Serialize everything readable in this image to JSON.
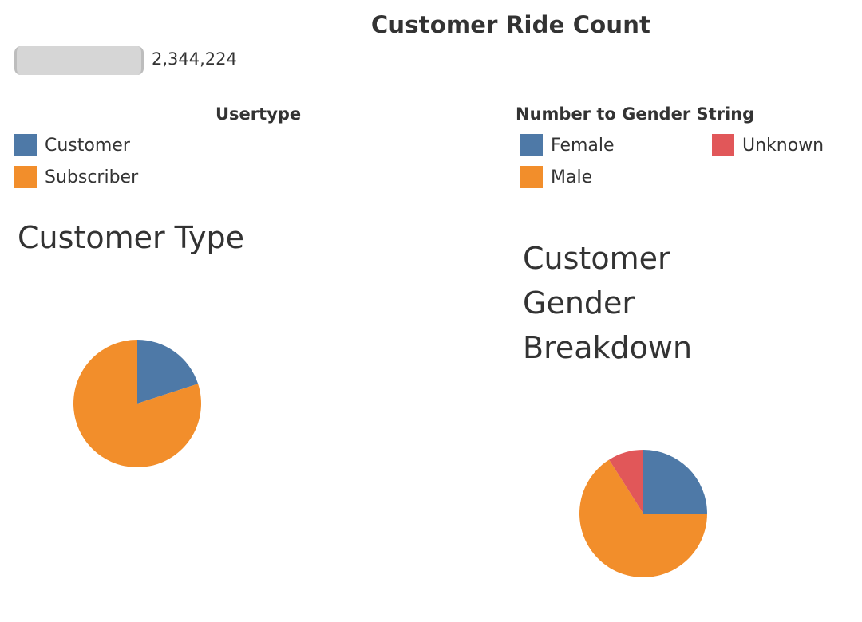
{
  "ride_count": {
    "title": "Customer Ride Count",
    "value": "2,344,224",
    "bar_fill_fraction": 1.0
  },
  "usertype_legend": {
    "title": "Usertype",
    "items": [
      {
        "label": "Customer",
        "color": "#4e79a7"
      },
      {
        "label": "Subscriber",
        "color": "#f28e2b"
      }
    ]
  },
  "gender_legend": {
    "title": "Number to Gender String",
    "items": [
      {
        "label": "Female",
        "color": "#4e79a7"
      },
      {
        "label": "Unknown",
        "color": "#e15759"
      },
      {
        "label": "Male",
        "color": "#f28e2b"
      }
    ]
  },
  "chart_data": [
    {
      "type": "pie",
      "title": "Customer Type",
      "categories": [
        "Customer",
        "Subscriber"
      ],
      "values": [
        20,
        80
      ],
      "colors": [
        "#4e79a7",
        "#f28e2b"
      ]
    },
    {
      "type": "pie",
      "title_lines": [
        "Customer",
        "Gender",
        "Breakdown"
      ],
      "categories": [
        "Female",
        "Male",
        "Unknown"
      ],
      "values": [
        25,
        66,
        9
      ],
      "colors": [
        "#4e79a7",
        "#f28e2b",
        "#e15759"
      ]
    }
  ]
}
